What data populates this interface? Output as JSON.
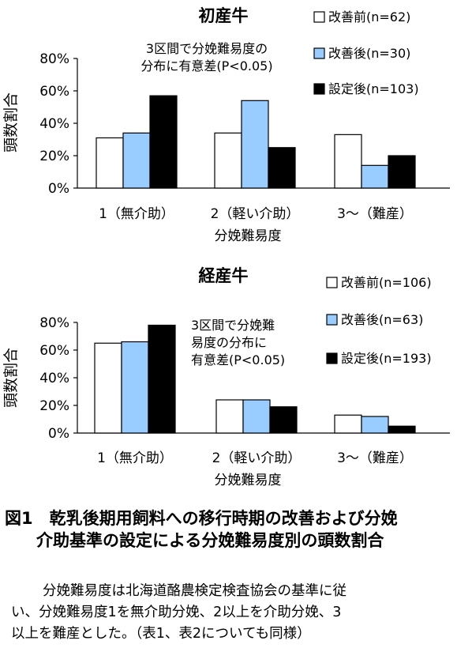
{
  "chart_data": [
    {
      "type": "bar",
      "title": "初産牛",
      "ylabel": "頭数割合",
      "xlabel": "分娩難易度",
      "categories": [
        "1（無介助）",
        "2（軽い介助）",
        "3〜（難産）"
      ],
      "y_ticks": [
        "0%",
        "20%",
        "40%",
        "60%",
        "80%"
      ],
      "ylim": [
        0,
        80
      ],
      "annotation": [
        "3区間で分娩難易度の",
        "分布に有意差(P<0.05)"
      ],
      "series": [
        {
          "name": "改善前(n=62)",
          "values": [
            31,
            34,
            33
          ],
          "color": "#ffffff"
        },
        {
          "name": "改善後(n=30)",
          "values": [
            34,
            54,
            14
          ],
          "color": "#99ccff"
        },
        {
          "name": "設定後(n=103)",
          "values": [
            57,
            25,
            20
          ],
          "color": "#000000"
        }
      ],
      "legend_position": "top-right",
      "grid": false
    },
    {
      "type": "bar",
      "title": "経産牛",
      "ylabel": "頭数割合",
      "xlabel": "分娩難易度",
      "categories": [
        "1（無介助）",
        "2（軽い介助）",
        "3〜（難産）"
      ],
      "y_ticks": [
        "0%",
        "20%",
        "40%",
        "60%",
        "80%"
      ],
      "ylim": [
        0,
        80
      ],
      "annotation": [
        "3区間で分娩難",
        "易度の分布に",
        "有意差(P<0.05)"
      ],
      "series": [
        {
          "name": "改善前(n=106)",
          "values": [
            65,
            24,
            13
          ],
          "color": "#ffffff"
        },
        {
          "name": "改善後(n=63)",
          "values": [
            66,
            24,
            12
          ],
          "color": "#99ccff"
        },
        {
          "name": "設定後(n=193)",
          "values": [
            78,
            19,
            5
          ],
          "color": "#000000"
        }
      ],
      "legend_position": "top-right",
      "grid": false
    }
  ],
  "caption": {
    "line1": "図1　乾乳後期用飼料への移行時期の改善および分娩",
    "line2": "介助基準の設定による分娩難易度別の頭数割合"
  },
  "note": {
    "line1": "分娩難易度は北海道酪農検定検査協会の基準に従",
    "line2": "い、分娩難易度1を無介助分娩、2以上を介助分娩、3",
    "line3": "以上を難産とした。（表1、表2についても同様）"
  }
}
